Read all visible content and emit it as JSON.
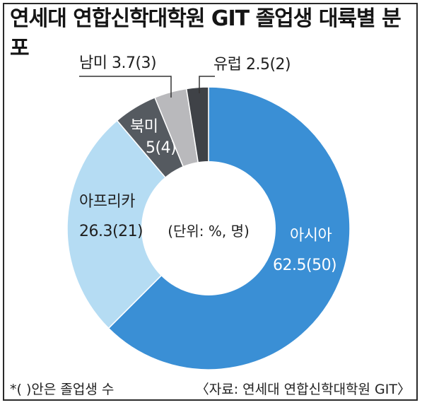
{
  "title": "연세대 연합신학대학원 GIT 졸업생 대륙별 분포",
  "center_label": "(단위: %, 명)",
  "footnote": "*(  )안은 졸업생 수",
  "source": "〈자료: 연세대 연합신학대학원 GIT〉",
  "chart_data": {
    "type": "pie",
    "title": "연세대 연합신학대학원 GIT 졸업생 대륙별 분포",
    "slices": [
      {
        "label": "아시아",
        "value": 62.5,
        "count": 50,
        "color": "#3a8fd5",
        "value_text": "62.5(50)"
      },
      {
        "label": "아프리카",
        "value": 26.3,
        "count": 21,
        "color": "#b5dcf3",
        "value_text": "26.3(21)"
      },
      {
        "label": "북미",
        "value": 5,
        "count": 4,
        "color": "#555a60",
        "value_text": "5(4)"
      },
      {
        "label": "남미",
        "value": 3.7,
        "count": 3,
        "color": "#b9b9bc",
        "value_text": "3.7(3)"
      },
      {
        "label": "유럽",
        "value": 2.5,
        "count": 2,
        "color": "#3f4247",
        "value_text": "2.5(2)"
      }
    ],
    "callouts": {
      "south_america": "남미 3.7(3)",
      "europe": "유럽 2.5(2)"
    }
  }
}
